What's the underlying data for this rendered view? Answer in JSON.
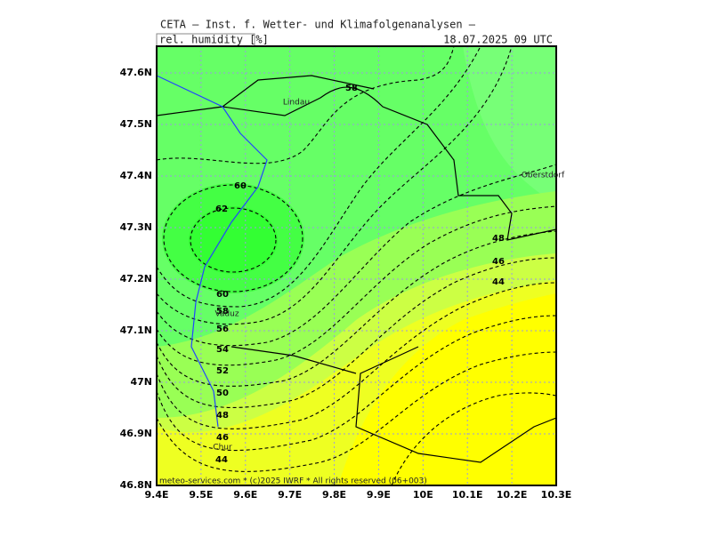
{
  "header": {
    "title": "CETA — Inst. f. Wetter- und Klimafolgenanalysen —",
    "variable": "rel. humidity [%]",
    "valid_time": "18.07.2025 09 UTC"
  },
  "map": {
    "xticks": [
      {
        "value": 9.4,
        "label": "9.4E"
      },
      {
        "value": 9.5,
        "label": "9.5E"
      },
      {
        "value": 9.6,
        "label": "9.6E"
      },
      {
        "value": 9.7,
        "label": "9.7E"
      },
      {
        "value": 9.8,
        "label": "9.8E"
      },
      {
        "value": 9.9,
        "label": "9.9E"
      },
      {
        "value": 10.0,
        "label": "10E"
      },
      {
        "value": 10.1,
        "label": "10.1E"
      },
      {
        "value": 10.2,
        "label": "10.2E"
      },
      {
        "value": 10.3,
        "label": "10.3E"
      }
    ],
    "yticks": [
      {
        "value": 46.8,
        "label": "46.8N"
      },
      {
        "value": 46.9,
        "label": "46.9N"
      },
      {
        "value": 47.0,
        "label": "47N"
      },
      {
        "value": 47.1,
        "label": "47.1N"
      },
      {
        "value": 47.2,
        "label": "47.2N"
      },
      {
        "value": 47.3,
        "label": "47.3N"
      },
      {
        "value": 47.4,
        "label": "47.4N"
      },
      {
        "value": 47.5,
        "label": "47.5N"
      },
      {
        "value": 47.6,
        "label": "47.6N"
      }
    ],
    "contour_labels": [
      58,
      60,
      62,
      60,
      58,
      56,
      54,
      52,
      50,
      48,
      46,
      44,
      48,
      46,
      44
    ],
    "places": [
      "Lindau",
      "Oberstdorf",
      "Vaduz",
      "Chur"
    ],
    "footer": "meteo-services.com * (c)2025 IWRF * All rights reserved (06+003)"
  }
}
